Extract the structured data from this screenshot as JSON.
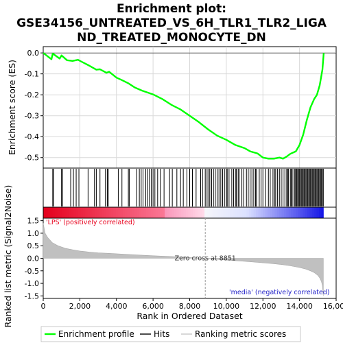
{
  "chart_data": {
    "type": "line",
    "title_lines": [
      "Enrichment plot:",
      "GSE34156_UNTREATED_VS_6H_TLR1_TLR2_LIGA",
      "ND_TREATED_MONOCYTE_DN"
    ],
    "es_panel": {
      "ylabel": "Enrichment score (ES)",
      "ylim": [
        -0.55,
        0.03
      ],
      "yticks": [
        0.0,
        -0.1,
        -0.2,
        -0.3,
        -0.4,
        -0.5
      ],
      "ytick_labels": [
        "0.0",
        "-0.1",
        "-0.2",
        "-0.3",
        "-0.4",
        "-0.5"
      ],
      "series_name": "Enrichment profile",
      "color": "#00ff00",
      "x": [
        0,
        450,
        520,
        900,
        1000,
        1300,
        1600,
        1900,
        2100,
        2500,
        2900,
        3100,
        3450,
        3600,
        4000,
        4300,
        4650,
        5000,
        5400,
        6000,
        6500,
        7000,
        7500,
        8000,
        8500,
        9000,
        9500,
        10000,
        10500,
        11000,
        11300,
        11700,
        12000,
        12300,
        12600,
        12900,
        13100,
        13300,
        13500,
        13800,
        14000,
        14200,
        14400,
        14600,
        14800,
        14950,
        15100,
        15250,
        15320
      ],
      "y": [
        0.0,
        -0.03,
        -0.003,
        -0.027,
        -0.012,
        -0.035,
        -0.038,
        -0.033,
        -0.042,
        -0.06,
        -0.08,
        -0.078,
        -0.095,
        -0.09,
        -0.118,
        -0.13,
        -0.145,
        -0.165,
        -0.18,
        -0.198,
        -0.22,
        -0.248,
        -0.27,
        -0.3,
        -0.33,
        -0.365,
        -0.395,
        -0.415,
        -0.44,
        -0.455,
        -0.47,
        -0.48,
        -0.5,
        -0.505,
        -0.505,
        -0.5,
        -0.505,
        -0.495,
        -0.482,
        -0.47,
        -0.44,
        -0.39,
        -0.32,
        -0.26,
        -0.22,
        -0.2,
        -0.155,
        -0.08,
        0.0
      ]
    },
    "hits": [
      520,
      560,
      1000,
      1050,
      1500,
      1650,
      1800,
      1950,
      2450,
      2800,
      2900,
      3100,
      3400,
      3500,
      3550,
      4100,
      4300,
      4650,
      4700,
      5100,
      5250,
      5350,
      5450,
      5600,
      5700,
      5800,
      5900,
      6000,
      6100,
      6250,
      6400,
      6600,
      6900,
      7050,
      7300,
      7500,
      7650,
      7850,
      8000,
      8150,
      8350,
      8600,
      8700,
      8850,
      8950,
      9050,
      9100,
      9200,
      9300,
      9400,
      9500,
      9600,
      9700,
      9800,
      9900,
      10000,
      10050,
      10150,
      10300,
      10400,
      10500,
      10550,
      10650,
      10700,
      10850,
      10950,
      11100,
      11200,
      11300,
      11400,
      11500,
      11600,
      11650,
      11800,
      11900,
      12000,
      12150,
      12300,
      12400,
      12550,
      12650,
      12700,
      12800,
      12900,
      13000,
      13100,
      13200,
      13300,
      13350,
      13400,
      13500,
      13550,
      13600,
      13700,
      13750,
      13800,
      13850,
      13900,
      13950,
      14000,
      14050,
      14100,
      14150,
      14200,
      14250,
      14300,
      14350,
      14400,
      14450,
      14500,
      14550,
      14600,
      14650,
      14700,
      14750,
      14800,
      14850,
      14900,
      14950,
      15000,
      15050,
      15100,
      15150,
      15200,
      15250,
      15300
    ],
    "metric_panel": {
      "ylabel": "Ranked list metric (Signal2Noise)",
      "ylim": [
        -1.6,
        1.6
      ],
      "yticks": [
        1.5,
        1.0,
        0.5,
        0.0,
        -0.5,
        -1.0,
        -1.5
      ],
      "ytick_labels": [
        "1.5",
        "1.0",
        "0.5",
        "0.0",
        "-0.5",
        "-1.0",
        "-1.5"
      ],
      "series_name": "Ranking metric scores",
      "color": "#c0c0c0",
      "x": [
        0,
        100,
        250,
        500,
        800,
        1200,
        1600,
        2000,
        2500,
        3000,
        3500,
        4000,
        5000,
        6000,
        7000,
        8000,
        8851,
        9500,
        10000,
        11000,
        12000,
        12500,
        13000,
        13500,
        14000,
        14300,
        14600,
        14800,
        15000,
        15100,
        15200,
        15250,
        15300
      ],
      "y": [
        1.4,
        1.0,
        0.82,
        0.62,
        0.5,
        0.4,
        0.34,
        0.29,
        0.25,
        0.22,
        0.2,
        0.18,
        0.14,
        0.1,
        0.07,
        0.03,
        0.0,
        -0.04,
        -0.07,
        -0.12,
        -0.18,
        -0.21,
        -0.25,
        -0.3,
        -0.37,
        -0.42,
        -0.5,
        -0.57,
        -0.68,
        -0.78,
        -0.93,
        -1.1,
        -1.5
      ]
    },
    "annotations": {
      "pos": "'LPS' (positively correlated)",
      "neg": "'media' (negatively correlated)",
      "zero": "Zero cross at 8851",
      "zero_x": 8851
    },
    "xlabel": "Rank in Ordered Dataset",
    "xlim": [
      0,
      16000
    ],
    "xticks": [
      0,
      2000,
      4000,
      6000,
      8000,
      10000,
      12000,
      14000,
      16000
    ],
    "xtick_labels": [
      "0",
      "2,000",
      "4,000",
      "6,000",
      "8,000",
      "10,000",
      "12,000",
      "14,000",
      "16,000"
    ],
    "n_genes": 15320,
    "legend": {
      "placement": "bottom",
      "items": [
        "Enrichment profile",
        "Hits",
        "Ranking metric scores"
      ]
    }
  }
}
